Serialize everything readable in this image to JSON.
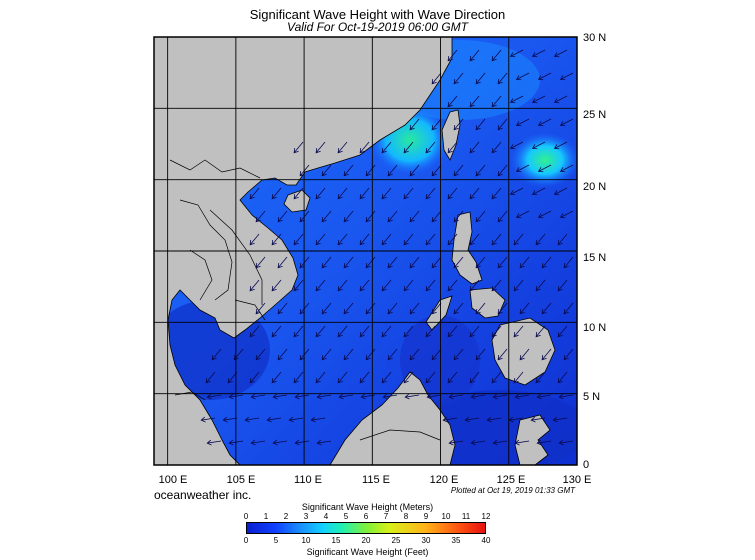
{
  "title": "Significant Wave Height with Wave Direction",
  "subtitle": "Valid For Oct-19-2019 06:00 GMT",
  "lat_labels": [
    "30 N",
    "25 N",
    "20 N",
    "15 N",
    "10 N",
    "5 N",
    "0"
  ],
  "lon_labels": [
    "100 E",
    "105 E",
    "110 E",
    "115 E",
    "120 E",
    "125 E",
    "130 E"
  ],
  "credit": "oceanweather inc.",
  "plotted": "Plotted at Oct 19, 2019 01:33 GMT",
  "colorbar": {
    "top_title": "Significant Wave Height (Meters)",
    "bottom_title": "Significant Wave Height (Feet)",
    "meters": [
      "0",
      "1",
      "2",
      "3",
      "4",
      "5",
      "6",
      "7",
      "8",
      "9",
      "10",
      "11",
      "12"
    ],
    "feet": [
      "0",
      "5",
      "10",
      "15",
      "20",
      "25",
      "30",
      "35",
      "40"
    ]
  },
  "map_extent": {
    "lon_min": 99,
    "lon_max": 130,
    "lat_min": 0,
    "lat_max": 30
  },
  "colors": {
    "land": "#c0c0c0",
    "ocean_deep": "#1030d8",
    "ocean_mid": "#1a60ff",
    "ocean_light": "#1aa0ff",
    "high_wave": "#30e070",
    "arrow": "#0a0a50",
    "grid": "#000000"
  }
}
